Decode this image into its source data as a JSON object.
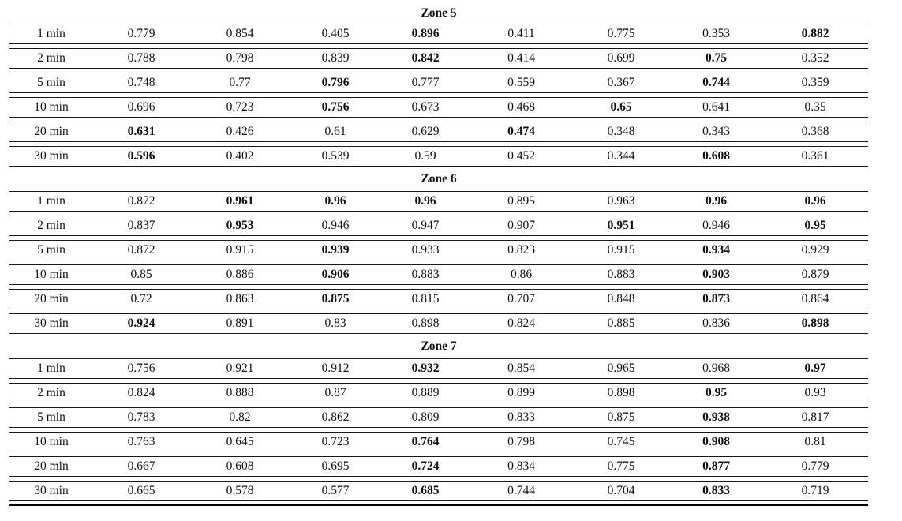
{
  "page": {
    "background_color": "#ffffff",
    "text_color": "#111111",
    "rule_color": "#1a1a1a"
  },
  "table": {
    "sections": [
      {
        "title": "Zone 5",
        "rows": [
          {
            "label": "1 min",
            "values": [
              "0.779",
              "0.854",
              "0.405",
              "0.896",
              "0.411",
              "0.775",
              "0.353",
              "0.882"
            ],
            "bold": [
              false,
              false,
              false,
              true,
              false,
              false,
              false,
              true
            ]
          },
          {
            "label": "2 min",
            "values": [
              "0.788",
              "0.798",
              "0.839",
              "0.842",
              "0.414",
              "0.699",
              "0.75",
              "0.352"
            ],
            "bold": [
              false,
              false,
              false,
              true,
              false,
              false,
              true,
              false
            ]
          },
          {
            "label": "5 min",
            "values": [
              "0.748",
              "0.77",
              "0.796",
              "0.777",
              "0.559",
              "0.367",
              "0.744",
              "0.359"
            ],
            "bold": [
              false,
              false,
              true,
              false,
              false,
              false,
              true,
              false
            ]
          },
          {
            "label": "10 min",
            "values": [
              "0.696",
              "0.723",
              "0.756",
              "0.673",
              "0.468",
              "0.65",
              "0.641",
              "0.35"
            ],
            "bold": [
              false,
              false,
              true,
              false,
              false,
              true,
              false,
              false
            ]
          },
          {
            "label": "20 min",
            "values": [
              "0.631",
              "0.426",
              "0.61",
              "0.629",
              "0.474",
              "0.348",
              "0.343",
              "0.368"
            ],
            "bold": [
              true,
              false,
              false,
              false,
              true,
              false,
              false,
              false
            ]
          },
          {
            "label": "30 min",
            "values": [
              "0.596",
              "0.402",
              "0.539",
              "0.59",
              "0.452",
              "0.344",
              "0.608",
              "0.361"
            ],
            "bold": [
              true,
              false,
              false,
              false,
              false,
              false,
              true,
              false
            ]
          }
        ]
      },
      {
        "title": "Zone 6",
        "rows": [
          {
            "label": "1 min",
            "values": [
              "0.872",
              "0.961",
              "0.96",
              "0.96",
              "0.895",
              "0.963",
              "0.96",
              "0.96"
            ],
            "bold": [
              false,
              true,
              true,
              true,
              false,
              false,
              true,
              true
            ]
          },
          {
            "label": "2 min",
            "values": [
              "0.837",
              "0.953",
              "0.946",
              "0.947",
              "0.907",
              "0.951",
              "0.946",
              "0.95"
            ],
            "bold": [
              false,
              true,
              false,
              false,
              false,
              true,
              false,
              true
            ]
          },
          {
            "label": "5 min",
            "values": [
              "0.872",
              "0.915",
              "0.939",
              "0.933",
              "0.823",
              "0.915",
              "0.934",
              "0.929"
            ],
            "bold": [
              false,
              false,
              true,
              false,
              false,
              false,
              true,
              false
            ]
          },
          {
            "label": "10 min",
            "values": [
              "0.85",
              "0.886",
              "0.906",
              "0.883",
              "0.86",
              "0.883",
              "0.903",
              "0.879"
            ],
            "bold": [
              false,
              false,
              true,
              false,
              false,
              false,
              true,
              false
            ]
          },
          {
            "label": "20 min",
            "values": [
              "0.72",
              "0.863",
              "0.875",
              "0.815",
              "0.707",
              "0.848",
              "0.873",
              "0.864"
            ],
            "bold": [
              false,
              false,
              true,
              false,
              false,
              false,
              true,
              false
            ]
          },
          {
            "label": "30 min",
            "values": [
              "0.924",
              "0.891",
              "0.83",
              "0.898",
              "0.824",
              "0.885",
              "0.836",
              "0.898"
            ],
            "bold": [
              true,
              false,
              false,
              false,
              false,
              false,
              false,
              true
            ]
          }
        ]
      },
      {
        "title": "Zone 7",
        "rows": [
          {
            "label": "1 min",
            "values": [
              "0.756",
              "0.921",
              "0.912",
              "0.932",
              "0.854",
              "0.965",
              "0.968",
              "0.97"
            ],
            "bold": [
              false,
              false,
              false,
              true,
              false,
              false,
              false,
              true
            ]
          },
          {
            "label": "2 min",
            "values": [
              "0.824",
              "0.888",
              "0.87",
              "0.889",
              "0.899",
              "0.898",
              "0.95",
              "0.93"
            ],
            "bold": [
              false,
              false,
              false,
              false,
              false,
              false,
              true,
              false
            ]
          },
          {
            "label": "5 min",
            "values": [
              "0.783",
              "0.82",
              "0.862",
              "0.809",
              "0.833",
              "0.875",
              "0.938",
              "0.817"
            ],
            "bold": [
              false,
              false,
              false,
              false,
              false,
              false,
              true,
              false
            ]
          },
          {
            "label": "10 min",
            "values": [
              "0.763",
              "0.645",
              "0.723",
              "0.764",
              "0.798",
              "0.745",
              "0.908",
              "0.81"
            ],
            "bold": [
              false,
              false,
              false,
              true,
              false,
              false,
              true,
              false
            ]
          },
          {
            "label": "20 min",
            "values": [
              "0.667",
              "0.608",
              "0.695",
              "0.724",
              "0.834",
              "0.775",
              "0.877",
              "0.779"
            ],
            "bold": [
              false,
              false,
              false,
              true,
              false,
              false,
              true,
              false
            ]
          },
          {
            "label": "30 min",
            "values": [
              "0.665",
              "0.578",
              "0.577",
              "0.685",
              "0.744",
              "0.704",
              "0.833",
              "0.719"
            ],
            "bold": [
              false,
              false,
              false,
              true,
              false,
              false,
              true,
              false
            ]
          }
        ]
      }
    ]
  }
}
